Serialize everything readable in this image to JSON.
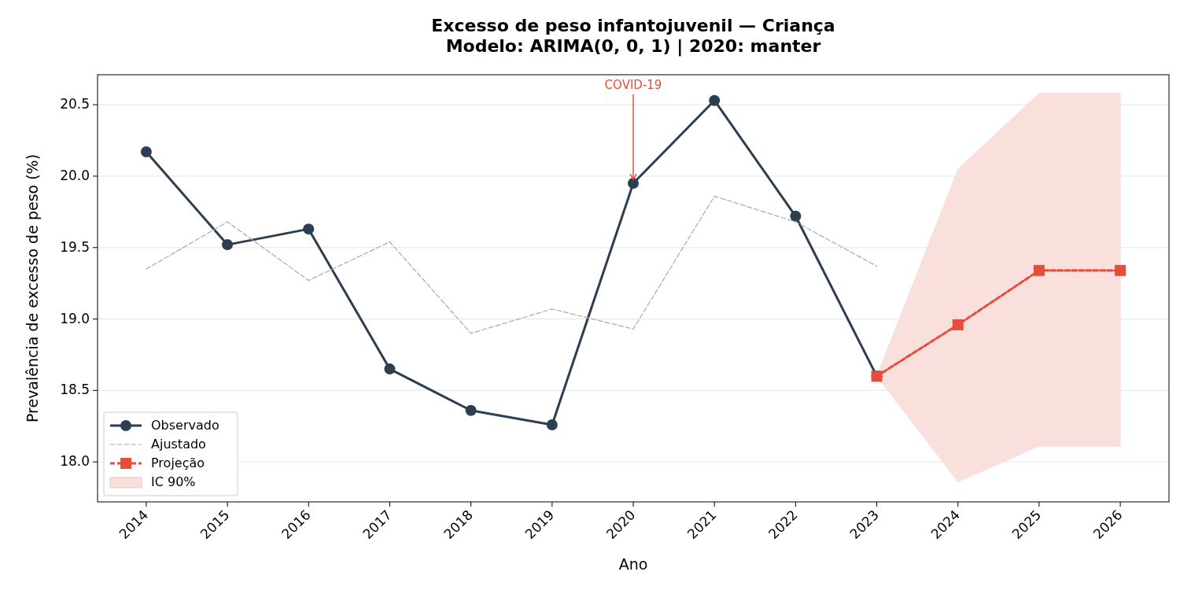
{
  "chart_data": {
    "type": "line",
    "title": "Excesso de peso infantojuvenil — Criança",
    "subtitle": "Modelo: ARIMA(0, 0, 1) | 2020: manter",
    "xlabel": "Ano",
    "ylabel": "Prevalência de excesso de peso (%)",
    "xlim": [
      2013.4,
      2026.6
    ],
    "xticks": [
      2014,
      2015,
      2016,
      2017,
      2018,
      2019,
      2020,
      2021,
      2022,
      2023,
      2024,
      2025,
      2026
    ],
    "ylim": [
      17.72,
      20.71
    ],
    "yticks": [
      {
        "value": 18,
        "label": "18.0"
      },
      18.5,
      {
        "value": 19,
        "label": "19.0"
      },
      19.5,
      {
        "value": 20,
        "label": "20.0"
      },
      20.5
    ],
    "grid": "y",
    "legend": "bottom left",
    "annotations": [
      {
        "text": "COVID-19",
        "x": 2020,
        "y": 19.95
      }
    ],
    "series": [
      {
        "name": "Observado",
        "color": "#2c3e50",
        "line_style": "solid",
        "marker": "circle",
        "x": [
          2014,
          2015,
          2016,
          2017,
          2018,
          2019,
          2020,
          2021,
          2022,
          2023
        ],
        "values": [
          20.17,
          19.52,
          19.63,
          18.65,
          18.36,
          18.26,
          19.95,
          20.53,
          19.72,
          18.6
        ]
      },
      {
        "name": "Ajustado",
        "color": "#aaaaaa",
        "line_style": "dashed",
        "marker": "none",
        "x": [
          2014,
          2015,
          2016,
          2017,
          2018,
          2019,
          2020,
          2021,
          2022,
          2023
        ],
        "values": [
          19.35,
          19.68,
          19.27,
          19.54,
          18.9,
          19.07,
          18.93,
          19.86,
          19.68,
          19.37
        ]
      },
      {
        "name": "Projeção",
        "color": "#e74c3c",
        "line_style": "dashed",
        "marker": "square",
        "x": [
          2023,
          2024,
          2025,
          2026
        ],
        "values": [
          18.6,
          18.96,
          19.34,
          19.34
        ]
      },
      {
        "name": "IC 90%",
        "type": "area",
        "color": "#f9e0dd",
        "x": [
          2023,
          2024,
          2025,
          2026
        ],
        "values": [
          null,
          null,
          null,
          null
        ],
        "lower": [
          18.6,
          17.86,
          18.11,
          18.11
        ],
        "upper": [
          18.6,
          20.05,
          20.58,
          20.58
        ]
      }
    ]
  }
}
